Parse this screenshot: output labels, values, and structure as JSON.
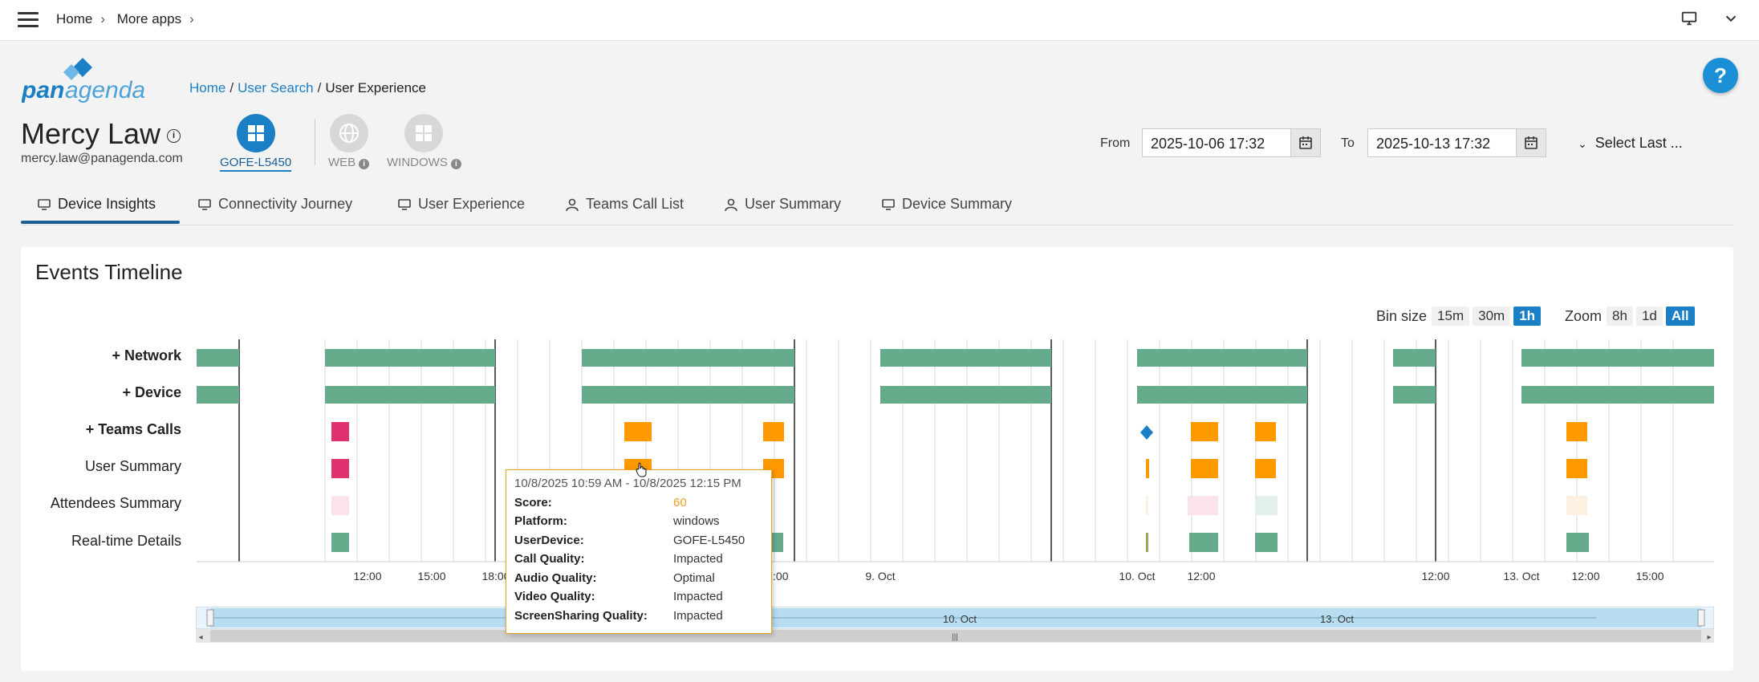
{
  "topbar": {
    "breadcrumb": [
      "Home",
      "More apps"
    ]
  },
  "brand": {
    "logo_text": "panagenda",
    "accent": "#1a7fc4"
  },
  "breadcrumb": {
    "home": "Home",
    "user_search": "User Search",
    "current": "User Experience"
  },
  "user": {
    "name": "Mercy Law",
    "email": "mercy.law@panagenda.com"
  },
  "devices": [
    {
      "label": "GOFE-L5450",
      "active": true
    },
    {
      "label": "WEB",
      "active": false
    },
    {
      "label": "WINDOWS",
      "active": false
    }
  ],
  "date_range": {
    "from_label": "From",
    "from_value": "2025-10-06 17:32",
    "to_label": "To",
    "to_value": "2025-10-13 17:32",
    "select_last": "Select Last ..."
  },
  "tabs": [
    {
      "label": "Device Insights",
      "icon": "monitor-icon",
      "active": true
    },
    {
      "label": "Connectivity Journey",
      "icon": "monitor-icon"
    },
    {
      "label": "User Experience",
      "icon": "monitor-icon"
    },
    {
      "label": "Teams Call List",
      "icon": "person-icon"
    },
    {
      "label": "User Summary",
      "icon": "person-icon"
    },
    {
      "label": "Device Summary",
      "icon": "monitor-icon"
    }
  ],
  "timeline": {
    "title": "Events Timeline",
    "bin_label": "Bin size",
    "bin_options": [
      "15m",
      "30m",
      "1h"
    ],
    "bin_selected": "1h",
    "zoom_label": "Zoom",
    "zoom_options": [
      "8h",
      "1d",
      "All"
    ],
    "zoom_selected": "All",
    "rows": [
      {
        "label": "+ Network",
        "bold": true
      },
      {
        "label": "+ Device",
        "bold": true
      },
      {
        "label": "+ Teams Calls",
        "bold": true
      },
      {
        "label": "User Summary",
        "bold": false
      },
      {
        "label": "Attendees Summary",
        "bold": false
      },
      {
        "label": "Real-time Details",
        "bold": false
      }
    ],
    "x_ticks": [
      "12:00",
      "15:00",
      "18:00",
      "12:00",
      "9. Oct",
      "10. Oct",
      "12:00",
      "12:00",
      "13. Oct",
      "12:00",
      "15:00"
    ],
    "navigator_labels": [
      "9. Oct",
      "10. Oct",
      "13. Oct"
    ],
    "colors": {
      "good": "#67ab8d",
      "warn": "#ff9900",
      "bad": "#e0306f",
      "info": "#1a7fc4",
      "nav": "#b8dcf0"
    }
  },
  "tooltip": {
    "header": "10/8/2025 10:59 AM - 10/8/2025 12:15 PM",
    "rows": [
      {
        "key": "Score:",
        "value": "60"
      },
      {
        "key": "Platform:",
        "value": "windows"
      },
      {
        "key": "UserDevice:",
        "value": "GOFE-L5450"
      },
      {
        "key": "Call Quality:",
        "value": "Impacted"
      },
      {
        "key": "Audio Quality:",
        "value": "Optimal"
      },
      {
        "key": "Video Quality:",
        "value": "Impacted"
      },
      {
        "key": "ScreenSharing Quality:",
        "value": "Impacted"
      }
    ]
  }
}
